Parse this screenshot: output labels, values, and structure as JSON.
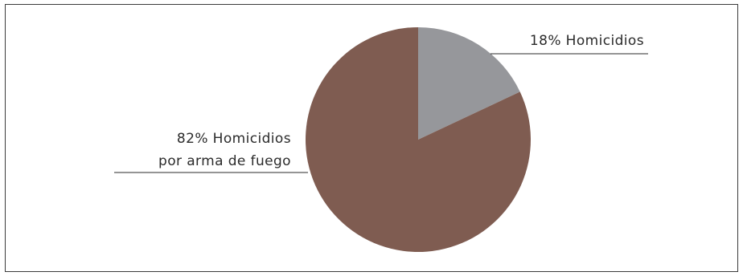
{
  "chart_data": {
    "type": "pie",
    "title": "",
    "slices": [
      {
        "label": "Homicidios",
        "value": 18,
        "label_lines": [
          "18% Homicidios"
        ],
        "color": "#96979b"
      },
      {
        "label": "Homicidios por arma de fuego",
        "value": 82,
        "label_lines": [
          "82% Homicidios",
          "por arma de fuego"
        ],
        "color": "#7f5c51"
      }
    ],
    "start_angle": "12 o'clock",
    "direction": "clockwise",
    "legend": "none"
  }
}
